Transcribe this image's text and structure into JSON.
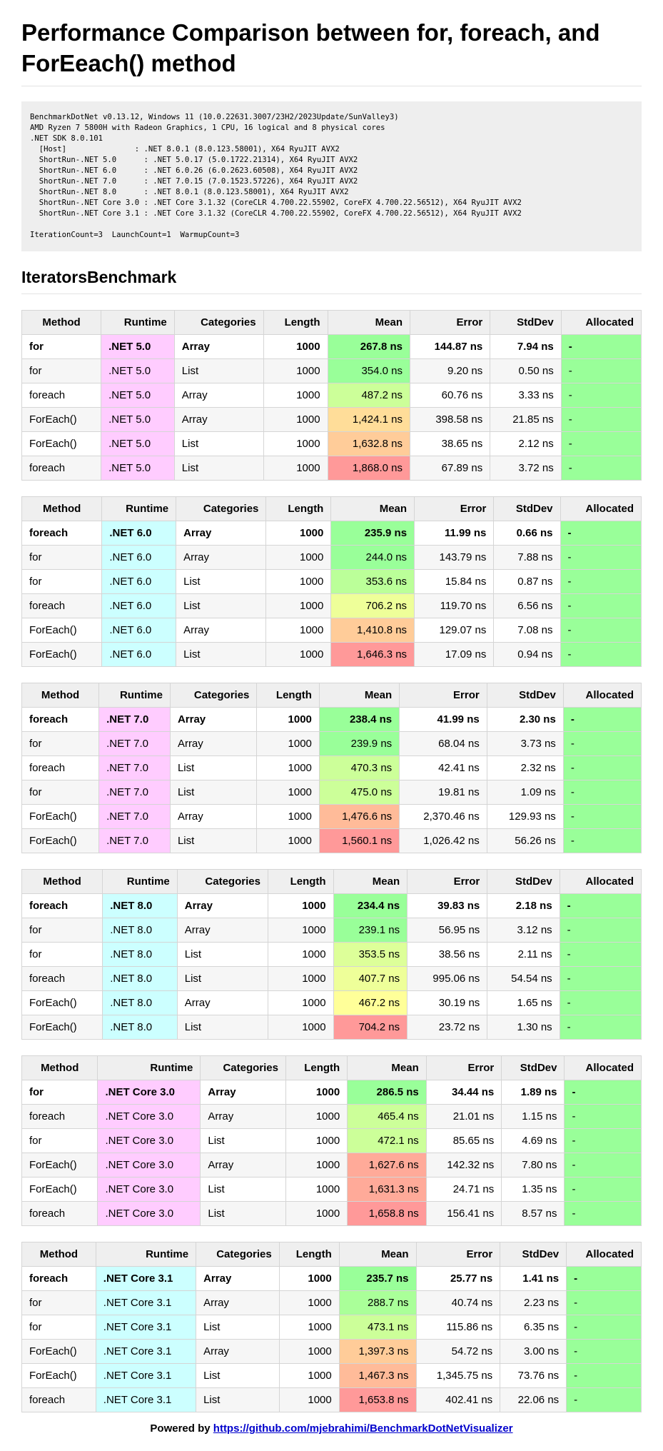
{
  "page_title": "Performance Comparison between for, foreach, and ForEeach() method",
  "env_info": "BenchmarkDotNet v0.13.12, Windows 11 (10.0.22631.3007/23H2/2023Update/SunValley3)\nAMD Ryzen 7 5800H with Radeon Graphics, 1 CPU, 16 logical and 8 physical cores\n.NET SDK 8.0.101\n  [Host]               : .NET 8.0.1 (8.0.123.58001), X64 RyuJIT AVX2\n  ShortRun-.NET 5.0      : .NET 5.0.17 (5.0.1722.21314), X64 RyuJIT AVX2\n  ShortRun-.NET 6.0      : .NET 6.0.26 (6.0.2623.60508), X64 RyuJIT AVX2\n  ShortRun-.NET 7.0      : .NET 7.0.15 (7.0.1523.57226), X64 RyuJIT AVX2\n  ShortRun-.NET 8.0      : .NET 8.0.1 (8.0.123.58001), X64 RyuJIT AVX2\n  ShortRun-.NET Core 3.0 : .NET Core 3.1.32 (CoreCLR 4.700.22.55902, CoreFX 4.700.22.56512), X64 RyuJIT AVX2\n  ShortRun-.NET Core 3.1 : .NET Core 3.1.32 (CoreCLR 4.700.22.55902, CoreFX 4.700.22.56512), X64 RyuJIT AVX2\n\nIterationCount=3  LaunchCount=1  WarmupCount=3",
  "section_title": "IteratorsBenchmark",
  "columns": [
    "Method",
    "Runtime",
    "Categories",
    "Length",
    "Mean",
    "Error",
    "StdDev",
    "Allocated"
  ],
  "colors": {
    "runtime_pink": "#ffccff",
    "runtime_cyan": "#ccffff",
    "allocated": "#99ff99",
    "mean_scale": [
      "#99ff99",
      "#ccff99",
      "#ffff99",
      "#ffcc99",
      "#ff9999"
    ]
  },
  "tables": [
    {
      "runtime_color": "pink",
      "rows": [
        {
          "method": "for",
          "runtime": ".NET 5.0",
          "categories": "Array",
          "length": "1000",
          "mean": "267.8 ns",
          "error": "144.87 ns",
          "stddev": "7.94 ns",
          "allocated": "-",
          "mean_color": "#99ff99",
          "best": true
        },
        {
          "method": "for",
          "runtime": ".NET 5.0",
          "categories": "List",
          "length": "1000",
          "mean": "354.0 ns",
          "error": "9.20 ns",
          "stddev": "0.50 ns",
          "allocated": "-",
          "mean_color": "#99ff99",
          "best": false
        },
        {
          "method": "foreach",
          "runtime": ".NET 5.0",
          "categories": "Array",
          "length": "1000",
          "mean": "487.2 ns",
          "error": "60.76 ns",
          "stddev": "3.33 ns",
          "allocated": "-",
          "mean_color": "#ccff99",
          "best": false
        },
        {
          "method": "ForEach()",
          "runtime": ".NET 5.0",
          "categories": "Array",
          "length": "1000",
          "mean": "1,424.1 ns",
          "error": "398.58 ns",
          "stddev": "21.85 ns",
          "allocated": "-",
          "mean_color": "#ffdd99",
          "best": false
        },
        {
          "method": "ForEach()",
          "runtime": ".NET 5.0",
          "categories": "List",
          "length": "1000",
          "mean": "1,632.8 ns",
          "error": "38.65 ns",
          "stddev": "2.12 ns",
          "allocated": "-",
          "mean_color": "#ffcc99",
          "best": false
        },
        {
          "method": "foreach",
          "runtime": ".NET 5.0",
          "categories": "List",
          "length": "1000",
          "mean": "1,868.0 ns",
          "error": "67.89 ns",
          "stddev": "3.72 ns",
          "allocated": "-",
          "mean_color": "#ff9999",
          "best": false
        }
      ]
    },
    {
      "runtime_color": "cyan",
      "rows": [
        {
          "method": "foreach",
          "runtime": ".NET 6.0",
          "categories": "Array",
          "length": "1000",
          "mean": "235.9 ns",
          "error": "11.99 ns",
          "stddev": "0.66 ns",
          "allocated": "-",
          "mean_color": "#99ff99",
          "best": true
        },
        {
          "method": "for",
          "runtime": ".NET 6.0",
          "categories": "Array",
          "length": "1000",
          "mean": "244.0 ns",
          "error": "143.79 ns",
          "stddev": "7.88 ns",
          "allocated": "-",
          "mean_color": "#99ff99",
          "best": false
        },
        {
          "method": "for",
          "runtime": ".NET 6.0",
          "categories": "List",
          "length": "1000",
          "mean": "353.6 ns",
          "error": "15.84 ns",
          "stddev": "0.87 ns",
          "allocated": "-",
          "mean_color": "#bbff99",
          "best": false
        },
        {
          "method": "foreach",
          "runtime": ".NET 6.0",
          "categories": "List",
          "length": "1000",
          "mean": "706.2 ns",
          "error": "119.70 ns",
          "stddev": "6.56 ns",
          "allocated": "-",
          "mean_color": "#eeff99",
          "best": false
        },
        {
          "method": "ForEach()",
          "runtime": ".NET 6.0",
          "categories": "Array",
          "length": "1000",
          "mean": "1,410.8 ns",
          "error": "129.07 ns",
          "stddev": "7.08 ns",
          "allocated": "-",
          "mean_color": "#ffcc99",
          "best": false
        },
        {
          "method": "ForEach()",
          "runtime": ".NET 6.0",
          "categories": "List",
          "length": "1000",
          "mean": "1,646.3 ns",
          "error": "17.09 ns",
          "stddev": "0.94 ns",
          "allocated": "-",
          "mean_color": "#ff9999",
          "best": false
        }
      ]
    },
    {
      "runtime_color": "pink",
      "rows": [
        {
          "method": "foreach",
          "runtime": ".NET 7.0",
          "categories": "Array",
          "length": "1000",
          "mean": "238.4 ns",
          "error": "41.99 ns",
          "stddev": "2.30 ns",
          "allocated": "-",
          "mean_color": "#99ff99",
          "best": true
        },
        {
          "method": "for",
          "runtime": ".NET 7.0",
          "categories": "Array",
          "length": "1000",
          "mean": "239.9 ns",
          "error": "68.04 ns",
          "stddev": "3.73 ns",
          "allocated": "-",
          "mean_color": "#99ff99",
          "best": false
        },
        {
          "method": "foreach",
          "runtime": ".NET 7.0",
          "categories": "List",
          "length": "1000",
          "mean": "470.3 ns",
          "error": "42.41 ns",
          "stddev": "2.32 ns",
          "allocated": "-",
          "mean_color": "#ccff99",
          "best": false
        },
        {
          "method": "for",
          "runtime": ".NET 7.0",
          "categories": "List",
          "length": "1000",
          "mean": "475.0 ns",
          "error": "19.81 ns",
          "stddev": "1.09 ns",
          "allocated": "-",
          "mean_color": "#ccff99",
          "best": false
        },
        {
          "method": "ForEach()",
          "runtime": ".NET 7.0",
          "categories": "Array",
          "length": "1000",
          "mean": "1,476.6 ns",
          "error": "2,370.46 ns",
          "stddev": "129.93 ns",
          "allocated": "-",
          "mean_color": "#ffbb99",
          "best": false
        },
        {
          "method": "ForEach()",
          "runtime": ".NET 7.0",
          "categories": "List",
          "length": "1000",
          "mean": "1,560.1 ns",
          "error": "1,026.42 ns",
          "stddev": "56.26 ns",
          "allocated": "-",
          "mean_color": "#ff9999",
          "best": false
        }
      ]
    },
    {
      "runtime_color": "cyan",
      "rows": [
        {
          "method": "foreach",
          "runtime": ".NET 8.0",
          "categories": "Array",
          "length": "1000",
          "mean": "234.4 ns",
          "error": "39.83 ns",
          "stddev": "2.18 ns",
          "allocated": "-",
          "mean_color": "#99ff99",
          "best": true
        },
        {
          "method": "for",
          "runtime": ".NET 8.0",
          "categories": "Array",
          "length": "1000",
          "mean": "239.1 ns",
          "error": "56.95 ns",
          "stddev": "3.12 ns",
          "allocated": "-",
          "mean_color": "#99ff99",
          "best": false
        },
        {
          "method": "for",
          "runtime": ".NET 8.0",
          "categories": "List",
          "length": "1000",
          "mean": "353.5 ns",
          "error": "38.56 ns",
          "stddev": "2.11 ns",
          "allocated": "-",
          "mean_color": "#ddff99",
          "best": false
        },
        {
          "method": "foreach",
          "runtime": ".NET 8.0",
          "categories": "List",
          "length": "1000",
          "mean": "407.7 ns",
          "error": "995.06 ns",
          "stddev": "54.54 ns",
          "allocated": "-",
          "mean_color": "#eeff99",
          "best": false
        },
        {
          "method": "ForEach()",
          "runtime": ".NET 8.0",
          "categories": "Array",
          "length": "1000",
          "mean": "467.2 ns",
          "error": "30.19 ns",
          "stddev": "1.65 ns",
          "allocated": "-",
          "mean_color": "#ffff99",
          "best": false
        },
        {
          "method": "ForEach()",
          "runtime": ".NET 8.0",
          "categories": "List",
          "length": "1000",
          "mean": "704.2 ns",
          "error": "23.72 ns",
          "stddev": "1.30 ns",
          "allocated": "-",
          "mean_color": "#ff9999",
          "best": false
        }
      ]
    },
    {
      "runtime_color": "pink",
      "rows": [
        {
          "method": "for",
          "runtime": ".NET Core 3.0",
          "categories": "Array",
          "length": "1000",
          "mean": "286.5 ns",
          "error": "34.44 ns",
          "stddev": "1.89 ns",
          "allocated": "-",
          "mean_color": "#99ff99",
          "best": true
        },
        {
          "method": "foreach",
          "runtime": ".NET Core 3.0",
          "categories": "Array",
          "length": "1000",
          "mean": "465.4 ns",
          "error": "21.01 ns",
          "stddev": "1.15 ns",
          "allocated": "-",
          "mean_color": "#ccff99",
          "best": false
        },
        {
          "method": "for",
          "runtime": ".NET Core 3.0",
          "categories": "List",
          "length": "1000",
          "mean": "472.1 ns",
          "error": "85.65 ns",
          "stddev": "4.69 ns",
          "allocated": "-",
          "mean_color": "#ccff99",
          "best": false
        },
        {
          "method": "ForEach()",
          "runtime": ".NET Core 3.0",
          "categories": "Array",
          "length": "1000",
          "mean": "1,627.6 ns",
          "error": "142.32 ns",
          "stddev": "7.80 ns",
          "allocated": "-",
          "mean_color": "#ffaa99",
          "best": false
        },
        {
          "method": "ForEach()",
          "runtime": ".NET Core 3.0",
          "categories": "List",
          "length": "1000",
          "mean": "1,631.3 ns",
          "error": "24.71 ns",
          "stddev": "1.35 ns",
          "allocated": "-",
          "mean_color": "#ffaa99",
          "best": false
        },
        {
          "method": "foreach",
          "runtime": ".NET Core 3.0",
          "categories": "List",
          "length": "1000",
          "mean": "1,658.8 ns",
          "error": "156.41 ns",
          "stddev": "8.57 ns",
          "allocated": "-",
          "mean_color": "#ff9999",
          "best": false
        }
      ]
    },
    {
      "runtime_color": "cyan",
      "rows": [
        {
          "method": "foreach",
          "runtime": ".NET Core 3.1",
          "categories": "Array",
          "length": "1000",
          "mean": "235.7 ns",
          "error": "25.77 ns",
          "stddev": "1.41 ns",
          "allocated": "-",
          "mean_color": "#99ff99",
          "best": true
        },
        {
          "method": "for",
          "runtime": ".NET Core 3.1",
          "categories": "Array",
          "length": "1000",
          "mean": "288.7 ns",
          "error": "40.74 ns",
          "stddev": "2.23 ns",
          "allocated": "-",
          "mean_color": "#aaff99",
          "best": false
        },
        {
          "method": "for",
          "runtime": ".NET Core 3.1",
          "categories": "List",
          "length": "1000",
          "mean": "473.1 ns",
          "error": "115.86 ns",
          "stddev": "6.35 ns",
          "allocated": "-",
          "mean_color": "#ccff99",
          "best": false
        },
        {
          "method": "ForEach()",
          "runtime": ".NET Core 3.1",
          "categories": "Array",
          "length": "1000",
          "mean": "1,397.3 ns",
          "error": "54.72 ns",
          "stddev": "3.00 ns",
          "allocated": "-",
          "mean_color": "#ffcc99",
          "best": false
        },
        {
          "method": "ForEach()",
          "runtime": ".NET Core 3.1",
          "categories": "List",
          "length": "1000",
          "mean": "1,467.3 ns",
          "error": "1,345.75 ns",
          "stddev": "73.76 ns",
          "allocated": "-",
          "mean_color": "#ffbb99",
          "best": false
        },
        {
          "method": "foreach",
          "runtime": ".NET Core 3.1",
          "categories": "List",
          "length": "1000",
          "mean": "1,653.8 ns",
          "error": "402.41 ns",
          "stddev": "22.06 ns",
          "allocated": "-",
          "mean_color": "#ff9999",
          "best": false
        }
      ]
    }
  ],
  "footer": {
    "prefix": "Powered by",
    "link_text": "https://github.com/mjebrahimi/BenchmarkDotNetVisualizer"
  }
}
